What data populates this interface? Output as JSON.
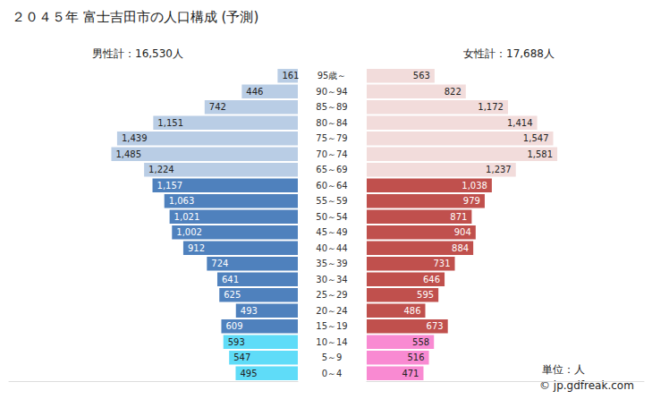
{
  "chart_data": {
    "type": "bar",
    "orientation": "horizontal",
    "title": "２０４５年 富士吉田市の人口構成 (予測)",
    "categories": [
      "95歳～",
      "90～94",
      "85～89",
      "80～84",
      "75～79",
      "70～74",
      "65～69",
      "60～64",
      "55～59",
      "50～54",
      "45～49",
      "40～44",
      "35～39",
      "30～34",
      "25～29",
      "20～24",
      "15～19",
      "10～14",
      "5～9",
      "0～4"
    ],
    "series": [
      {
        "name": "男性計：16,530人",
        "values": [
          161,
          446,
          742,
          1151,
          1439,
          1485,
          1224,
          1157,
          1063,
          1021,
          1002,
          912,
          724,
          641,
          625,
          493,
          609,
          593,
          547,
          495
        ],
        "value_labels": [
          "161",
          "446",
          "742",
          "1,151",
          "1,439",
          "1,485",
          "1,224",
          "1,157",
          "1,063",
          "1,021",
          "1,002",
          "912",
          "724",
          "641",
          "625",
          "493",
          "609",
          "593",
          "547",
          "495"
        ],
        "colors": [
          "#b9cde5",
          "#b9cde5",
          "#b9cde5",
          "#b9cde5",
          "#b9cde5",
          "#b9cde5",
          "#b9cde5",
          "#4f81bd",
          "#4f81bd",
          "#4f81bd",
          "#4f81bd",
          "#4f81bd",
          "#4f81bd",
          "#4f81bd",
          "#4f81bd",
          "#4f81bd",
          "#4f81bd",
          "#5fdcf8",
          "#5fdcf8",
          "#5fdcf8"
        ]
      },
      {
        "name": "女性計：17,688人",
        "values": [
          563,
          822,
          1172,
          1414,
          1547,
          1581,
          1237,
          1038,
          979,
          871,
          904,
          884,
          731,
          646,
          595,
          486,
          673,
          558,
          516,
          471
        ],
        "value_labels": [
          "563",
          "822",
          "1,172",
          "1,414",
          "1,547",
          "1,581",
          "1,237",
          "1,038",
          "979",
          "871",
          "904",
          "884",
          "731",
          "646",
          "595",
          "486",
          "673",
          "558",
          "516",
          "471"
        ],
        "colors": [
          "#f2dcdb",
          "#f2dcdb",
          "#f2dcdb",
          "#f2dcdb",
          "#f2dcdb",
          "#f2dcdb",
          "#f2dcdb",
          "#c0504d",
          "#c0504d",
          "#c0504d",
          "#c0504d",
          "#c0504d",
          "#c0504d",
          "#c0504d",
          "#c0504d",
          "#c0504d",
          "#c0504d",
          "#f98ad2",
          "#f98ad2",
          "#f98ad2"
        ]
      }
    ],
    "xlim": [
      0,
      2300
    ],
    "tick_labels": "y",
    "grid": false,
    "data_labels": true,
    "annotations": [
      "単位：人",
      "© jp.gdfreak.com"
    ]
  }
}
